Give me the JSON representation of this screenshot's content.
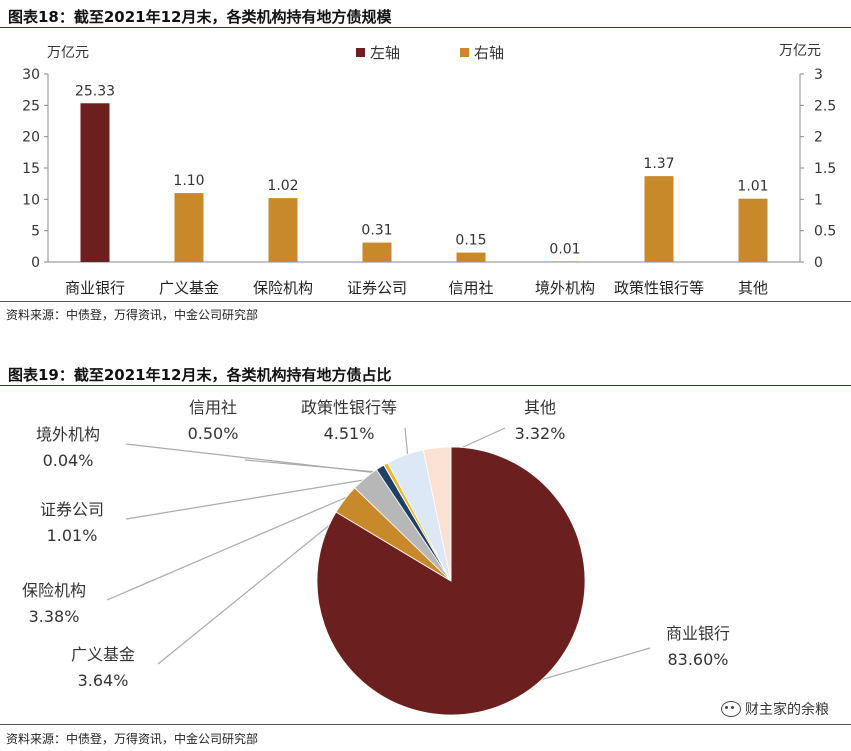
{
  "figure1": {
    "title": "图表18：截至2021年12月末，各类机构持有地方债规模",
    "source": "资料来源：中债登，万得资讯，中金公司研究部"
  },
  "figure2": {
    "title": "图表19：截至2021年12月末，各类机构持有地方债占比",
    "source": "资料来源：中债登，万得资讯，中金公司研究部"
  },
  "watermark": "财主家的余粮",
  "colors": {
    "primary": "#6b1f1f",
    "secondary": "#c8892b"
  },
  "chart_data": [
    {
      "type": "bar",
      "title": "",
      "categories": [
        "商业银行",
        "广义基金",
        "保险机构",
        "证券公司",
        "信用社",
        "境外机构",
        "政策性银行等",
        "其他"
      ],
      "series": [
        {
          "name": "左轴",
          "axis": "left",
          "color": "#6b1f1f",
          "values": [
            25.33,
            null,
            null,
            null,
            null,
            null,
            null,
            null
          ]
        },
        {
          "name": "右轴",
          "axis": "right",
          "color": "#c8892b",
          "values": [
            null,
            1.1,
            1.02,
            0.31,
            0.15,
            0.01,
            1.37,
            1.01
          ]
        }
      ],
      "data_labels": [
        "25.33",
        "1.10",
        "1.02",
        "0.31",
        "0.15",
        "0.01",
        "1.37",
        "1.01"
      ],
      "ylabel_left": "万亿元",
      "ylabel_right": "万亿元",
      "ylim_left": [
        0,
        30
      ],
      "ylim_right": [
        0,
        3
      ],
      "yticks_left": [
        "0",
        "5",
        "10",
        "15",
        "20",
        "25",
        "30"
      ],
      "yticks_right": [
        "0",
        "0.5",
        "1",
        "1.5",
        "2",
        "2.5",
        "3"
      ],
      "grid": false,
      "legend_position": "top-center"
    },
    {
      "type": "pie",
      "slices": [
        {
          "label": "商业银行",
          "value": 83.6,
          "display": "83.60%",
          "color": "#6b1f1f"
        },
        {
          "label": "广义基金",
          "value": 3.64,
          "display": "3.64%",
          "color": "#c8892b"
        },
        {
          "label": "保险机构",
          "value": 3.38,
          "display": "3.38%",
          "color": "#b7b7b7"
        },
        {
          "label": "证券公司",
          "value": 1.01,
          "display": "1.01%",
          "color": "#1f3f63"
        },
        {
          "label": "境外机构",
          "value": 0.04,
          "display": "0.04%",
          "color": "#7a5a2a"
        },
        {
          "label": "信用社",
          "value": 0.5,
          "display": "0.50%",
          "color": "#f0b429"
        },
        {
          "label": "政策性银行等",
          "value": 4.51,
          "display": "4.51%",
          "color": "#dce8f5"
        },
        {
          "label": "其他",
          "value": 3.32,
          "display": "3.32%",
          "color": "#fbe1d4"
        }
      ]
    }
  ]
}
